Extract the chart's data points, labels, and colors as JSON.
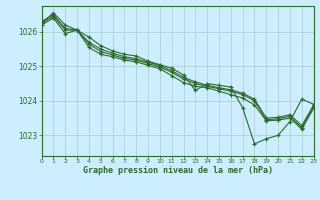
{
  "background_color": "#cceeff",
  "grid_color": "#aacccc",
  "line_color": "#2d6a2d",
  "marker": "+",
  "xlabel": "Graphe pression niveau de la mer (hPa)",
  "xlabel_color": "#2d6a2d",
  "tick_color": "#2d6a2d",
  "ylim": [
    1022.4,
    1026.75
  ],
  "yticks": [
    1023,
    1024,
    1025,
    1026
  ],
  "xticks": [
    0,
    1,
    2,
    3,
    4,
    5,
    6,
    7,
    8,
    9,
    10,
    11,
    12,
    13,
    14,
    15,
    16,
    17,
    18,
    19,
    20,
    21,
    22,
    23
  ],
  "series": [
    [
      1026.25,
      1026.55,
      1026.2,
      1026.05,
      1025.85,
      1025.6,
      1025.45,
      1025.35,
      1025.3,
      1025.15,
      1025.05,
      1024.95,
      1024.75,
      1024.3,
      1024.5,
      1024.45,
      1024.4,
      1023.8,
      1022.75,
      1022.9,
      1023.0,
      1023.4,
      1024.05,
      1023.9
    ],
    [
      1026.3,
      1026.5,
      1026.1,
      1026.05,
      1025.7,
      1025.5,
      1025.38,
      1025.28,
      1025.22,
      1025.12,
      1025.02,
      1024.88,
      1024.68,
      1024.55,
      1024.45,
      1024.38,
      1024.32,
      1024.22,
      1024.05,
      1023.5,
      1023.52,
      1023.6,
      1023.28,
      1023.88
    ],
    [
      1026.25,
      1026.45,
      1026.05,
      1026.05,
      1025.65,
      1025.43,
      1025.33,
      1025.23,
      1025.18,
      1025.08,
      1024.98,
      1024.83,
      1024.63,
      1024.5,
      1024.42,
      1024.35,
      1024.28,
      1024.18,
      1024.0,
      1023.45,
      1023.48,
      1023.55,
      1023.22,
      1023.83
    ],
    [
      1026.2,
      1026.4,
      1025.95,
      1026.05,
      1025.55,
      1025.35,
      1025.28,
      1025.18,
      1025.13,
      1025.03,
      1024.93,
      1024.73,
      1024.53,
      1024.42,
      1024.38,
      1024.28,
      1024.18,
      1024.08,
      1023.88,
      1023.42,
      1023.44,
      1023.5,
      1023.18,
      1023.78
    ]
  ]
}
